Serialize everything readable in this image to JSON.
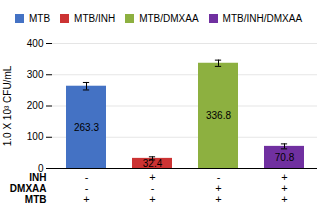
{
  "chart_data": {
    "type": "bar",
    "categories": [
      "MTB",
      "MTB/INH",
      "MTB/DMXAA",
      "MTB/INH/DMXAA"
    ],
    "values": [
      263.3,
      32.4,
      336.8,
      70.8
    ],
    "errors": [
      12,
      5,
      10,
      8
    ],
    "colors": [
      "#4472C4",
      "#CC3333",
      "#8DB040",
      "#7030A0"
    ],
    "ylabel": "1.0 X 10³ CFU/mL",
    "ylim": [
      0,
      400
    ],
    "yticks": [
      0,
      100,
      200,
      300,
      400
    ],
    "grid": true,
    "legend": "top",
    "data_labels": true,
    "tick_labels": "y",
    "annotation_rows": [
      {
        "label": "INH",
        "signs": [
          "-",
          "+",
          "-",
          "+"
        ]
      },
      {
        "label": "DMXAA",
        "signs": [
          "-",
          "-",
          "+",
          "+"
        ]
      },
      {
        "label": "MTB",
        "signs": [
          "+",
          "+",
          "+",
          "+"
        ]
      }
    ]
  }
}
